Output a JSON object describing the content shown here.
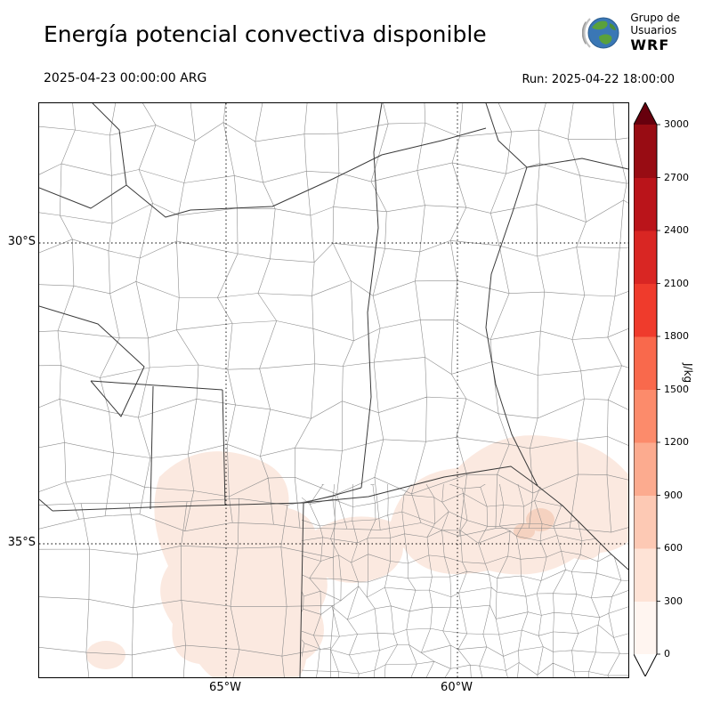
{
  "header": {
    "title": "Energía potencial convectiva disponible",
    "valid_time": "2025-04-23 00:00:00 ARG",
    "run_label": "Run: 2025-04-22 18:00:00",
    "logo": {
      "line1": "Grupo de",
      "line2": "Usuarios",
      "line3": "WRF"
    }
  },
  "map": {
    "lat_labels": [
      "30°S",
      "35°S"
    ],
    "lon_labels": [
      "65°W",
      "60°W"
    ]
  },
  "colorbar": {
    "unit": "J/kg",
    "ticks": [
      "0",
      "300",
      "600",
      "900",
      "1200",
      "1500",
      "1800",
      "2100",
      "2400",
      "2700",
      "3000"
    ],
    "segment_colors": [
      "#fff5f0",
      "#fee3d6",
      "#fdc9b4",
      "#fcab8f",
      "#fc8b6b",
      "#f9694c",
      "#ef3b2c",
      "#d92623",
      "#ba141a",
      "#980c13"
    ],
    "over_color": "#67000d",
    "under_color": "#ffffff",
    "shade_light": "#fbe9e0",
    "shade_medium": "#f5d2c0"
  },
  "chart_data": {
    "type": "heatmap",
    "title": "Energía potencial convectiva disponible",
    "units": "J/kg",
    "scale": {
      "min": 0,
      "max": 3000,
      "step": 300
    },
    "visible_field": "CAPE mostly near 0 over the domain; light shading up to ~300 J/kg over the central-southern sector (La Pampa / western Buenos Aires) and around the Río de la Plata region"
  }
}
